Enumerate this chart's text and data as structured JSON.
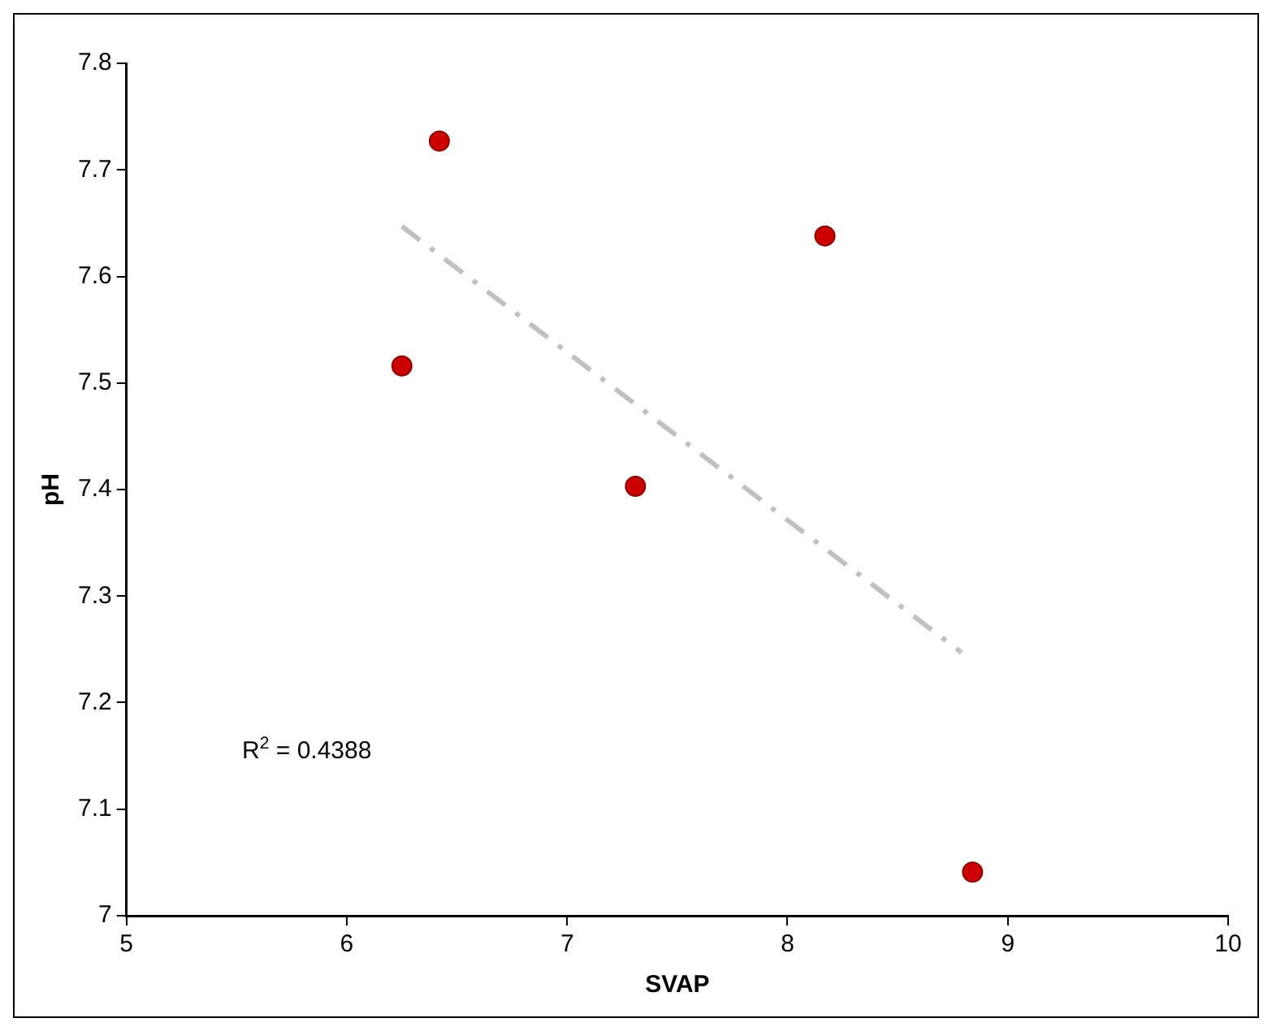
{
  "chart_data": {
    "type": "scatter",
    "xlabel": "SVAP",
    "ylabel": "pH",
    "xlim": [
      5,
      10
    ],
    "ylim": [
      7,
      7.8
    ],
    "xticks": [
      5,
      6,
      7,
      8,
      9,
      10
    ],
    "yticks": [
      7,
      7.1,
      7.2,
      7.3,
      7.4,
      7.5,
      7.6,
      7.7,
      7.8
    ],
    "grid": false,
    "legend": false,
    "marker": "circle",
    "annotations": [
      "R$^{2}$ = 0.4388"
    ],
    "series": [
      {
        "color": "#cc0000",
        "x": [
          6.25,
          6.42,
          7.31,
          8.17,
          8.84
        ],
        "values": [
          7.516,
          7.727,
          7.403,
          7.638,
          7.041
        ]
      },
      {
        "type": "line",
        "color": "#c0c0c0",
        "marker": "none",
        "line_style": "dashed",
        "x": [
          6.25,
          8.79
        ],
        "values": [
          7.647,
          7.247
        ]
      }
    ]
  }
}
